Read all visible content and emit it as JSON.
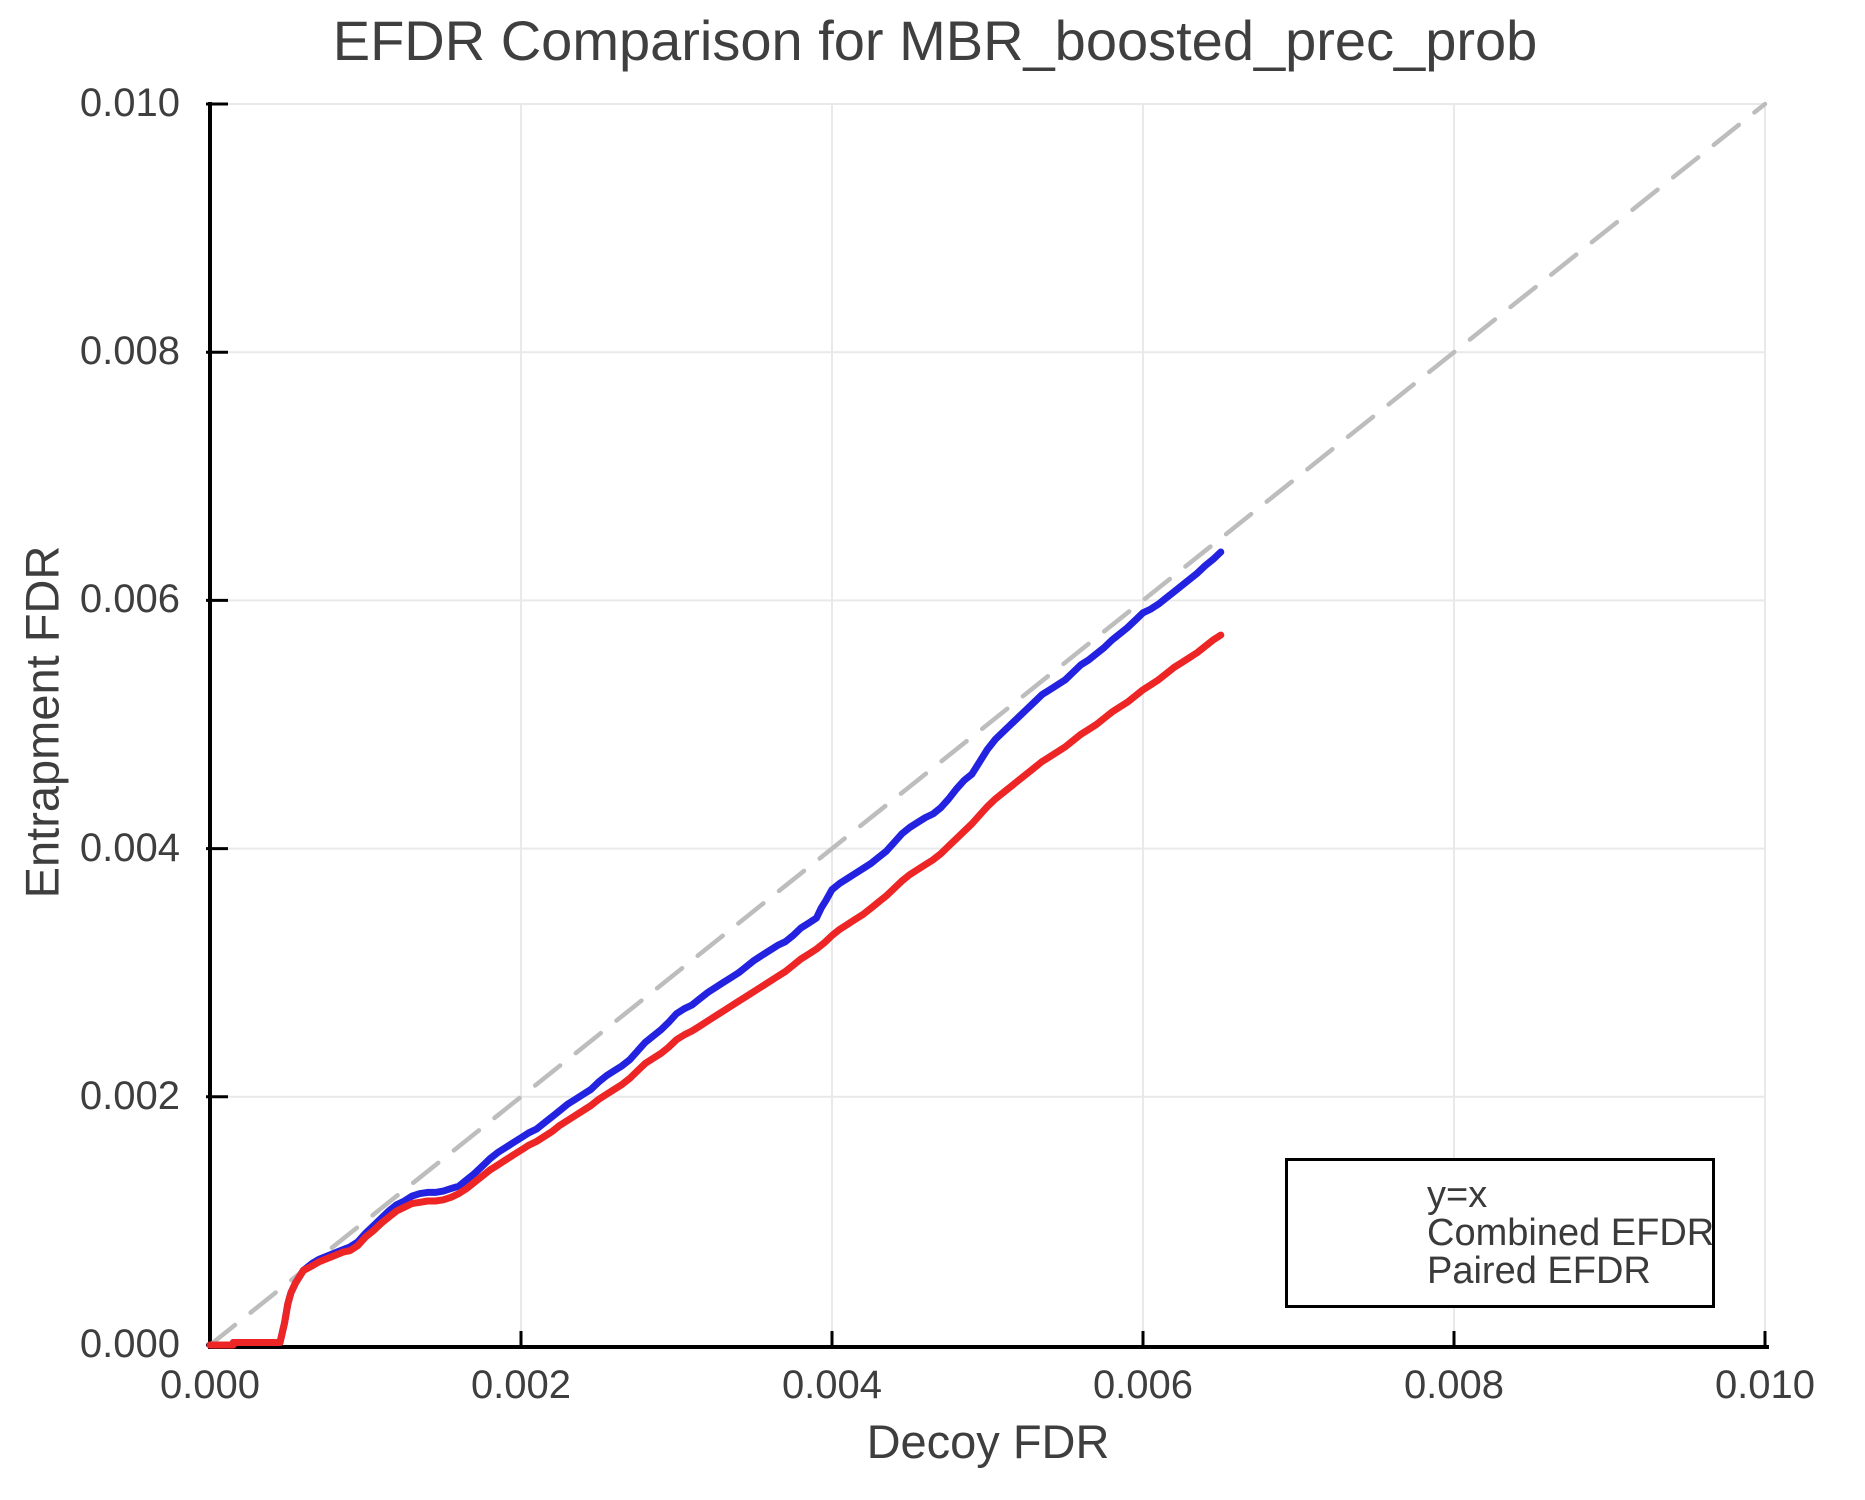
{
  "title": "EFDR Comparison for MBR_boosted_prec_prob",
  "axes": {
    "x": {
      "label": "Decoy FDR",
      "tick_values": [
        0,
        0.002,
        0.004,
        0.006,
        0.008,
        0.01
      ],
      "tick_labels": [
        "0.000",
        "0.002",
        "0.004",
        "0.006",
        "0.008",
        "0.010"
      ],
      "range": [
        0,
        0.01
      ]
    },
    "y": {
      "label": "Entrapment FDR",
      "tick_values": [
        0,
        0.002,
        0.004,
        0.006,
        0.008,
        0.01
      ],
      "tick_labels": [
        "0.000",
        "0.002",
        "0.004",
        "0.006",
        "0.008",
        "0.010"
      ],
      "range": [
        0,
        0.01
      ]
    }
  },
  "colors": {
    "identity_line": "#bdbdbd",
    "combined_efdr": "#2222e0",
    "paired_efdr": "#ee2525",
    "gridline": "#e9e9e9",
    "spine": "#000000",
    "text": "#3e3e3e",
    "background": "#ffffff"
  },
  "legend": {
    "items": [
      {
        "label": "y=x",
        "color": "#bdbdbd",
        "style": "dashed"
      },
      {
        "label": "Combined EFDR",
        "color": "#2222e0",
        "style": "solid"
      },
      {
        "label": "Paired EFDR",
        "color": "#ee2525",
        "style": "solid"
      }
    ]
  },
  "chart_data": {
    "type": "line",
    "title": "EFDR Comparison for MBR_boosted_prec_prob",
    "xlabel": "Decoy FDR",
    "ylabel": "Entrapment FDR",
    "xlim": [
      0,
      0.01
    ],
    "ylim": [
      0,
      0.01
    ],
    "grid": true,
    "legend_position": "lower right",
    "series": [
      {
        "name": "y=x",
        "style": "dashed",
        "color": "#bdbdbd",
        "width": 4.5,
        "points": [
          [
            0,
            0
          ],
          [
            0.01,
            0.01
          ]
        ]
      },
      {
        "name": "Combined EFDR",
        "style": "solid",
        "color": "#2222e0",
        "width": 7,
        "points": [
          [
            0.0,
            0.0
          ],
          [
            0.00015,
            0.0
          ],
          [
            0.00015,
            2e-05
          ],
          [
            0.00045,
            2e-05
          ],
          [
            0.00048,
            0.00018
          ],
          [
            0.0005,
            0.00033
          ],
          [
            0.00052,
            0.00042
          ],
          [
            0.00055,
            0.0005
          ],
          [
            0.00058,
            0.00056
          ],
          [
            0.0006,
            0.0006
          ],
          [
            0.00063,
            0.00063
          ],
          [
            0.00066,
            0.00066
          ],
          [
            0.0007,
            0.00069
          ],
          [
            0.00074,
            0.00071
          ],
          [
            0.00078,
            0.00073
          ],
          [
            0.00082,
            0.00075
          ],
          [
            0.00086,
            0.00077
          ],
          [
            0.0009,
            0.00079
          ],
          [
            0.00095,
            0.00083
          ],
          [
            0.001,
            0.0009
          ],
          [
            0.00105,
            0.00096
          ],
          [
            0.0011,
            0.00102
          ],
          [
            0.00115,
            0.00108
          ],
          [
            0.0012,
            0.00113
          ],
          [
            0.00125,
            0.00116
          ],
          [
            0.0013,
            0.0012
          ],
          [
            0.00135,
            0.00122
          ],
          [
            0.0014,
            0.00123
          ],
          [
            0.00145,
            0.00123
          ],
          [
            0.0015,
            0.00124
          ],
          [
            0.00155,
            0.00126
          ],
          [
            0.0016,
            0.00128
          ],
          [
            0.00165,
            0.00133
          ],
          [
            0.0017,
            0.00138
          ],
          [
            0.00175,
            0.00144
          ],
          [
            0.0018,
            0.0015
          ],
          [
            0.00185,
            0.00155
          ],
          [
            0.0019,
            0.00159
          ],
          [
            0.00195,
            0.00163
          ],
          [
            0.002,
            0.00167
          ],
          [
            0.00205,
            0.00171
          ],
          [
            0.0021,
            0.00174
          ],
          [
            0.00215,
            0.00179
          ],
          [
            0.0022,
            0.00184
          ],
          [
            0.00225,
            0.00189
          ],
          [
            0.0023,
            0.00194
          ],
          [
            0.00235,
            0.00198
          ],
          [
            0.0024,
            0.00202
          ],
          [
            0.00245,
            0.00206
          ],
          [
            0.0025,
            0.00212
          ],
          [
            0.00255,
            0.00217
          ],
          [
            0.0026,
            0.00221
          ],
          [
            0.00265,
            0.00225
          ],
          [
            0.0027,
            0.0023
          ],
          [
            0.00275,
            0.00237
          ],
          [
            0.0028,
            0.00244
          ],
          [
            0.00285,
            0.00249
          ],
          [
            0.0029,
            0.00254
          ],
          [
            0.00295,
            0.0026
          ],
          [
            0.003,
            0.00267
          ],
          [
            0.00305,
            0.00271
          ],
          [
            0.0031,
            0.00274
          ],
          [
            0.00315,
            0.00279
          ],
          [
            0.0032,
            0.00284
          ],
          [
            0.00325,
            0.00288
          ],
          [
            0.0033,
            0.00292
          ],
          [
            0.00335,
            0.00296
          ],
          [
            0.0034,
            0.003
          ],
          [
            0.00345,
            0.00305
          ],
          [
            0.0035,
            0.0031
          ],
          [
            0.00355,
            0.00314
          ],
          [
            0.0036,
            0.00318
          ],
          [
            0.00365,
            0.00322
          ],
          [
            0.0037,
            0.00325
          ],
          [
            0.00375,
            0.0033
          ],
          [
            0.0038,
            0.00336
          ],
          [
            0.00385,
            0.0034
          ],
          [
            0.0039,
            0.00344
          ],
          [
            0.00393,
            0.00352
          ],
          [
            0.00396,
            0.00358
          ],
          [
            0.004,
            0.00367
          ],
          [
            0.00405,
            0.00372
          ],
          [
            0.0041,
            0.00376
          ],
          [
            0.00415,
            0.0038
          ],
          [
            0.0042,
            0.00384
          ],
          [
            0.00425,
            0.00388
          ],
          [
            0.0043,
            0.00393
          ],
          [
            0.00435,
            0.00398
          ],
          [
            0.0044,
            0.00405
          ],
          [
            0.00445,
            0.00412
          ],
          [
            0.0045,
            0.00417
          ],
          [
            0.00455,
            0.00421
          ],
          [
            0.0046,
            0.00425
          ],
          [
            0.00465,
            0.00428
          ],
          [
            0.0047,
            0.00433
          ],
          [
            0.00475,
            0.0044
          ],
          [
            0.0048,
            0.00448
          ],
          [
            0.00485,
            0.00455
          ],
          [
            0.0049,
            0.0046
          ],
          [
            0.00495,
            0.0047
          ],
          [
            0.005,
            0.0048
          ],
          [
            0.00505,
            0.00488
          ],
          [
            0.0051,
            0.00494
          ],
          [
            0.00515,
            0.005
          ],
          [
            0.0052,
            0.00506
          ],
          [
            0.00525,
            0.00512
          ],
          [
            0.0053,
            0.00518
          ],
          [
            0.00535,
            0.00524
          ],
          [
            0.0054,
            0.00528
          ],
          [
            0.00545,
            0.00532
          ],
          [
            0.0055,
            0.00536
          ],
          [
            0.00555,
            0.00542
          ],
          [
            0.0056,
            0.00548
          ],
          [
            0.00565,
            0.00552
          ],
          [
            0.0057,
            0.00557
          ],
          [
            0.00575,
            0.00562
          ],
          [
            0.0058,
            0.00568
          ],
          [
            0.00585,
            0.00573
          ],
          [
            0.0059,
            0.00578
          ],
          [
            0.00595,
            0.00584
          ],
          [
            0.006,
            0.0059
          ],
          [
            0.00605,
            0.00593
          ],
          [
            0.0061,
            0.00597
          ],
          [
            0.00615,
            0.00602
          ],
          [
            0.0062,
            0.00607
          ],
          [
            0.00625,
            0.00612
          ],
          [
            0.0063,
            0.00617
          ],
          [
            0.00635,
            0.00622
          ],
          [
            0.0064,
            0.00628
          ],
          [
            0.00645,
            0.00633
          ],
          [
            0.0065,
            0.00639
          ]
        ]
      },
      {
        "name": "Paired EFDR",
        "style": "solid",
        "color": "#ee2525",
        "width": 7,
        "points": [
          [
            0.0,
            0.0
          ],
          [
            0.00015,
            0.0
          ],
          [
            0.00015,
            2e-05
          ],
          [
            0.00045,
            2e-05
          ],
          [
            0.00048,
            0.00018
          ],
          [
            0.0005,
            0.00033
          ],
          [
            0.00052,
            0.00042
          ],
          [
            0.00055,
            0.0005
          ],
          [
            0.00058,
            0.00056
          ],
          [
            0.0006,
            0.0006
          ],
          [
            0.00063,
            0.00062
          ],
          [
            0.00066,
            0.00064
          ],
          [
            0.0007,
            0.00067
          ],
          [
            0.00074,
            0.00069
          ],
          [
            0.00078,
            0.00071
          ],
          [
            0.00082,
            0.00073
          ],
          [
            0.00086,
            0.00075
          ],
          [
            0.0009,
            0.00076
          ],
          [
            0.00095,
            0.0008
          ],
          [
            0.001,
            0.00087
          ],
          [
            0.00105,
            0.00092
          ],
          [
            0.0011,
            0.00098
          ],
          [
            0.00115,
            0.00103
          ],
          [
            0.0012,
            0.00108
          ],
          [
            0.00125,
            0.00111
          ],
          [
            0.0013,
            0.00114
          ],
          [
            0.00135,
            0.00115
          ],
          [
            0.0014,
            0.00116
          ],
          [
            0.00145,
            0.00116
          ],
          [
            0.0015,
            0.00117
          ],
          [
            0.00155,
            0.00119
          ],
          [
            0.0016,
            0.00122
          ],
          [
            0.00165,
            0.00126
          ],
          [
            0.0017,
            0.00131
          ],
          [
            0.00175,
            0.00136
          ],
          [
            0.0018,
            0.00141
          ],
          [
            0.00185,
            0.00145
          ],
          [
            0.0019,
            0.00149
          ],
          [
            0.00195,
            0.00153
          ],
          [
            0.002,
            0.00157
          ],
          [
            0.00205,
            0.00161
          ],
          [
            0.0021,
            0.00164
          ],
          [
            0.00215,
            0.00168
          ],
          [
            0.0022,
            0.00172
          ],
          [
            0.00225,
            0.00177
          ],
          [
            0.0023,
            0.00181
          ],
          [
            0.00235,
            0.00185
          ],
          [
            0.0024,
            0.00189
          ],
          [
            0.00245,
            0.00193
          ],
          [
            0.0025,
            0.00198
          ],
          [
            0.00255,
            0.00202
          ],
          [
            0.0026,
            0.00206
          ],
          [
            0.00265,
            0.0021
          ],
          [
            0.0027,
            0.00215
          ],
          [
            0.00275,
            0.00221
          ],
          [
            0.0028,
            0.00227
          ],
          [
            0.00285,
            0.00231
          ],
          [
            0.0029,
            0.00235
          ],
          [
            0.00295,
            0.0024
          ],
          [
            0.003,
            0.00246
          ],
          [
            0.00305,
            0.0025
          ],
          [
            0.0031,
            0.00253
          ],
          [
            0.00315,
            0.00257
          ],
          [
            0.0032,
            0.00261
          ],
          [
            0.00325,
            0.00265
          ],
          [
            0.0033,
            0.00269
          ],
          [
            0.00335,
            0.00273
          ],
          [
            0.0034,
            0.00277
          ],
          [
            0.00345,
            0.00281
          ],
          [
            0.0035,
            0.00285
          ],
          [
            0.00355,
            0.00289
          ],
          [
            0.0036,
            0.00293
          ],
          [
            0.00365,
            0.00297
          ],
          [
            0.0037,
            0.00301
          ],
          [
            0.00375,
            0.00306
          ],
          [
            0.0038,
            0.00311
          ],
          [
            0.00385,
            0.00315
          ],
          [
            0.0039,
            0.00319
          ],
          [
            0.00395,
            0.00324
          ],
          [
            0.004,
            0.0033
          ],
          [
            0.00405,
            0.00335
          ],
          [
            0.0041,
            0.00339
          ],
          [
            0.00415,
            0.00343
          ],
          [
            0.0042,
            0.00347
          ],
          [
            0.00425,
            0.00352
          ],
          [
            0.0043,
            0.00357
          ],
          [
            0.00435,
            0.00362
          ],
          [
            0.0044,
            0.00368
          ],
          [
            0.00445,
            0.00374
          ],
          [
            0.0045,
            0.00379
          ],
          [
            0.00455,
            0.00383
          ],
          [
            0.0046,
            0.00387
          ],
          [
            0.00465,
            0.00391
          ],
          [
            0.0047,
            0.00396
          ],
          [
            0.00475,
            0.00402
          ],
          [
            0.0048,
            0.00408
          ],
          [
            0.00485,
            0.00414
          ],
          [
            0.0049,
            0.0042
          ],
          [
            0.00495,
            0.00427
          ],
          [
            0.005,
            0.00434
          ],
          [
            0.00505,
            0.0044
          ],
          [
            0.0051,
            0.00445
          ],
          [
            0.00515,
            0.0045
          ],
          [
            0.0052,
            0.00455
          ],
          [
            0.00525,
            0.0046
          ],
          [
            0.0053,
            0.00465
          ],
          [
            0.00535,
            0.0047
          ],
          [
            0.0054,
            0.00474
          ],
          [
            0.00545,
            0.00478
          ],
          [
            0.0055,
            0.00482
          ],
          [
            0.00555,
            0.00487
          ],
          [
            0.0056,
            0.00492
          ],
          [
            0.00565,
            0.00496
          ],
          [
            0.0057,
            0.005
          ],
          [
            0.00575,
            0.00505
          ],
          [
            0.0058,
            0.0051
          ],
          [
            0.00585,
            0.00514
          ],
          [
            0.0059,
            0.00518
          ],
          [
            0.00595,
            0.00523
          ],
          [
            0.006,
            0.00528
          ],
          [
            0.00605,
            0.00532
          ],
          [
            0.0061,
            0.00536
          ],
          [
            0.00615,
            0.00541
          ],
          [
            0.0062,
            0.00546
          ],
          [
            0.00625,
            0.0055
          ],
          [
            0.0063,
            0.00554
          ],
          [
            0.00635,
            0.00558
          ],
          [
            0.0064,
            0.00563
          ],
          [
            0.00645,
            0.00568
          ],
          [
            0.0065,
            0.00572
          ]
        ]
      }
    ]
  }
}
